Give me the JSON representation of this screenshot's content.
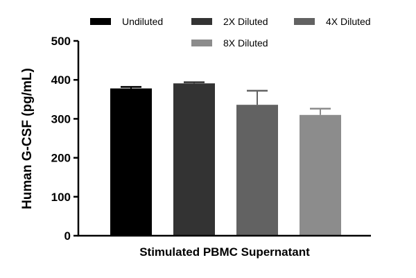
{
  "chart_data": {
    "type": "bar",
    "title": "",
    "xlabel": "Stimulated PBMC Supernatant",
    "ylabel": "Human G-CSF (pg/mL)",
    "ylim": [
      0,
      500
    ],
    "yticks": [
      0,
      100,
      200,
      300,
      400,
      500
    ],
    "grid": false,
    "legend_position": "top",
    "series": [
      {
        "name": "Undiluted",
        "value": 378,
        "error": 4,
        "color": "#000000"
      },
      {
        "name": "2X Diluted",
        "value": 391,
        "error": 3,
        "color": "#333333"
      },
      {
        "name": "4X Diluted",
        "value": 336,
        "error": 36,
        "color": "#626262"
      },
      {
        "name": "8X Diluted",
        "value": 310,
        "error": 16,
        "color": "#8c8c8c"
      }
    ]
  }
}
